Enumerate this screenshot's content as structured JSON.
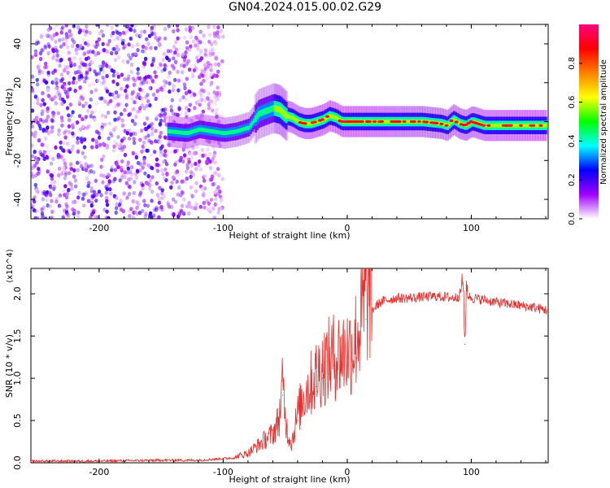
{
  "title": "GN04.2024.015.00.02.G29",
  "chart_data": [
    {
      "type": "heatmap",
      "xlabel": "Height of straight line (km)",
      "ylabel": "Frequency (Hz)",
      "xlim": [
        -255,
        162
      ],
      "ylim": [
        -50,
        50
      ],
      "xticks": [
        -200,
        -100,
        0,
        100
      ],
      "yticks": [
        -40,
        -20,
        0,
        20,
        40
      ],
      "colorbar": {
        "label": "Normalized spectral amplitude",
        "range": [
          0,
          1
        ],
        "ticks": [
          "0.0",
          "0.2",
          "0.4",
          "0.6",
          "0.8"
        ],
        "colors": [
          "#ffffff",
          "#a000ff",
          "#0000ff",
          "#00ffff",
          "#00ff00",
          "#ffff00",
          "#ff8000",
          "#ff0000",
          "#ff0080"
        ]
      },
      "ridge": {
        "x": [
          -145,
          -130,
          -120,
          -110,
          -100,
          -90,
          -80,
          -72,
          -68,
          -60,
          -55,
          -50,
          -45,
          -40,
          -35,
          -30,
          -25,
          -20,
          -15,
          -10,
          -5,
          0,
          20,
          40,
          60,
          75,
          80,
          85,
          90,
          95,
          100,
          110,
          120,
          140,
          160
        ],
        "y": [
          -5,
          -6,
          -4,
          -5,
          -6,
          -5,
          -3,
          4,
          5,
          7,
          6,
          3,
          2,
          0,
          -1,
          -1,
          0,
          1,
          3,
          2,
          0,
          0,
          0,
          0,
          0,
          -1,
          -2,
          1,
          -1,
          -2,
          0,
          -2,
          -2,
          -2,
          -2
        ]
      },
      "noise_region": [
        -255,
        -100
      ]
    },
    {
      "type": "line",
      "xlabel": "Height of straight line (km)",
      "ylabel": "SNR (10 * v/v)",
      "y_multiplier": "(x10^4)",
      "xlim": [
        -255,
        162
      ],
      "ylim": [
        0,
        2.3
      ],
      "xticks": [
        -200,
        -100,
        0,
        100
      ],
      "yticks": [
        "0.0",
        "0.5",
        "1.0",
        "1.5",
        "2.0"
      ],
      "color": "#e8312e",
      "series": [
        {
          "x": [
            -255,
            -200,
            -150,
            -120,
            -100,
            -90,
            -80,
            -70,
            -60,
            -55,
            -52,
            -50,
            -48,
            -45,
            -40,
            -35,
            -30,
            -25,
            -20,
            -15,
            -10,
            -5,
            0,
            5,
            10,
            15,
            20,
            25,
            30,
            40,
            50,
            60,
            70,
            80,
            85,
            90,
            93,
            95,
            96,
            100,
            110,
            120,
            130,
            140,
            150,
            162
          ],
          "values": [
            0.02,
            0.02,
            0.03,
            0.03,
            0.05,
            0.06,
            0.1,
            0.2,
            0.3,
            0.45,
            0.8,
            0.5,
            0.3,
            0.2,
            0.5,
            0.7,
            0.8,
            0.9,
            1.0,
            1.05,
            1.1,
            1.12,
            1.15,
            1.2,
            1.4,
            1.7,
            1.8,
            1.88,
            1.92,
            1.95,
            1.95,
            1.96,
            1.97,
            1.96,
            1.95,
            1.97,
            2.1,
            1.4,
            2.0,
            1.95,
            1.93,
            1.9,
            1.88,
            1.86,
            1.84,
            1.8
          ]
        }
      ]
    }
  ]
}
